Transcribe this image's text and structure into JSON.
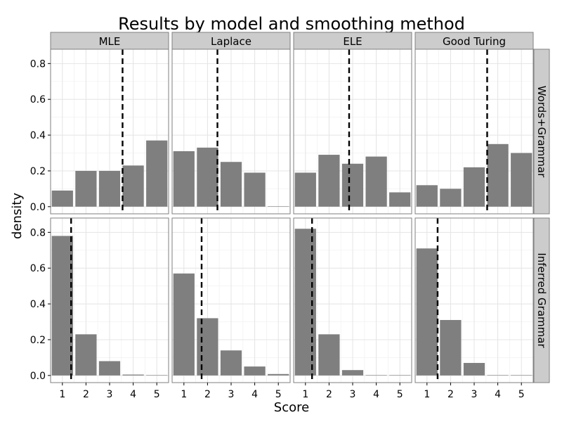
{
  "chart_data": {
    "type": "bar",
    "title": "Results by model and smoothing method",
    "xlabel": "Score",
    "ylabel": "density",
    "categories": [
      "1",
      "2",
      "3",
      "4",
      "5"
    ],
    "ylim": [
      -0.04,
      0.88
    ],
    "yticks": [
      "0.0",
      "0.2",
      "0.4",
      "0.6",
      "0.8"
    ],
    "grid": true,
    "columns": [
      "MLE",
      "Laplace",
      "ELE",
      "Good Turing"
    ],
    "rows": [
      "Words+Grammar",
      "Inferred Grammar"
    ],
    "panels": [
      {
        "row": "Words+Grammar",
        "column": "MLE",
        "values": [
          0.09,
          0.2,
          0.2,
          0.23,
          0.37
        ],
        "mean": 3.55
      },
      {
        "row": "Words+Grammar",
        "column": "Laplace",
        "values": [
          0.31,
          0.33,
          0.25,
          0.19,
          0.0
        ],
        "mean": 2.42
      },
      {
        "row": "Words+Grammar",
        "column": "ELE",
        "values": [
          0.19,
          0.29,
          0.24,
          0.28,
          0.08
        ],
        "mean": 2.85
      },
      {
        "row": "Words+Grammar",
        "column": "Good Turing",
        "values": [
          0.12,
          0.1,
          0.22,
          0.35,
          0.3
        ],
        "mean": 3.55
      },
      {
        "row": "Inferred Grammar",
        "column": "MLE",
        "values": [
          0.78,
          0.23,
          0.08,
          0.005,
          0.0
        ],
        "mean": 1.37
      },
      {
        "row": "Inferred Grammar",
        "column": "Laplace",
        "values": [
          0.57,
          0.32,
          0.14,
          0.05,
          0.008
        ],
        "mean": 1.75
      },
      {
        "row": "Inferred Grammar",
        "column": "ELE",
        "values": [
          0.82,
          0.23,
          0.03,
          0.0,
          0.0
        ],
        "mean": 1.28
      },
      {
        "row": "Inferred Grammar",
        "column": "Good Turing",
        "values": [
          0.71,
          0.31,
          0.07,
          0.0,
          0.0
        ],
        "mean": 1.45
      }
    ],
    "bar_color": "#7f7f7f",
    "mean_line_color": "#000000"
  }
}
